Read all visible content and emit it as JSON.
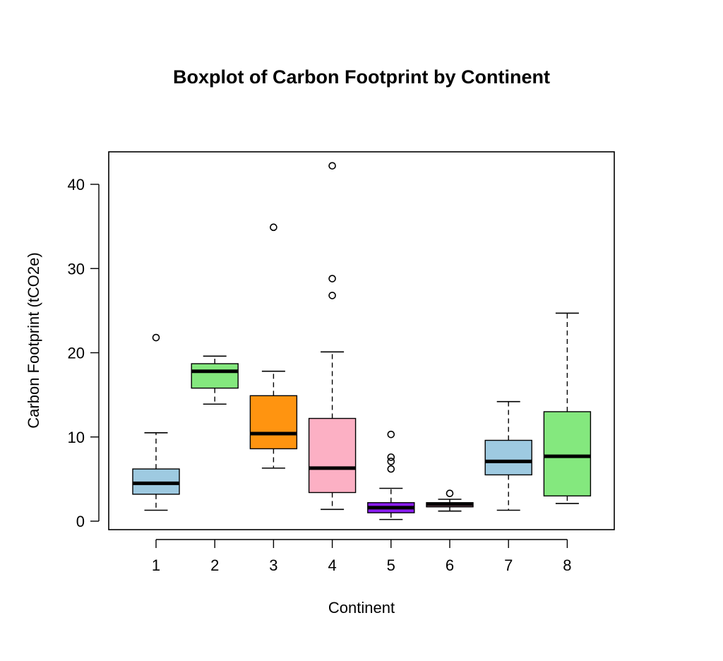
{
  "chart_data": {
    "type": "boxplot",
    "title": "Boxplot of Carbon Footprint by Continent",
    "xlabel": "Continent",
    "ylabel": "Carbon Footprint (tCO2e)",
    "ylim": [
      -1,
      44
    ],
    "y_ticks": [
      0,
      10,
      20,
      30,
      40
    ],
    "categories": [
      "1",
      "2",
      "3",
      "4",
      "5",
      "6",
      "7",
      "8"
    ],
    "grid": false,
    "legend": "none",
    "boxes": [
      {
        "category": "1",
        "color": "#9ecae1",
        "whisker_low": 1.3,
        "q1": 3.2,
        "median": 4.5,
        "q3": 6.2,
        "whisker_high": 10.5,
        "outliers": [
          21.8
        ]
      },
      {
        "category": "2",
        "color": "#84e87e",
        "whisker_low": 13.9,
        "q1": 15.8,
        "median": 17.8,
        "q3": 18.7,
        "whisker_high": 19.6,
        "outliers": []
      },
      {
        "category": "3",
        "color": "#ff9410",
        "whisker_low": 6.3,
        "q1": 8.6,
        "median": 10.4,
        "q3": 14.9,
        "whisker_high": 17.8,
        "outliers": [
          34.9
        ]
      },
      {
        "category": "4",
        "color": "#fcb0c4",
        "whisker_low": 1.4,
        "q1": 3.4,
        "median": 6.3,
        "q3": 12.2,
        "whisker_high": 20.1,
        "outliers": [
          26.8,
          28.8,
          42.2
        ]
      },
      {
        "category": "5",
        "color": "#8b1df2",
        "whisker_low": 0.2,
        "q1": 1.0,
        "median": 1.6,
        "q3": 2.2,
        "whisker_high": 3.9,
        "outliers": [
          6.2,
          7.1,
          7.6,
          10.3
        ]
      },
      {
        "category": "6",
        "color": "#ffa0bc",
        "whisker_low": 1.2,
        "q1": 1.7,
        "median": 2.0,
        "q3": 2.2,
        "whisker_high": 2.6,
        "outliers": [
          3.3
        ]
      },
      {
        "category": "7",
        "color": "#9ecae1",
        "whisker_low": 1.3,
        "q1": 5.5,
        "median": 7.1,
        "q3": 9.6,
        "whisker_high": 14.2,
        "outliers": []
      },
      {
        "category": "8",
        "color": "#84e87e",
        "whisker_low": 2.1,
        "q1": 3.0,
        "median": 7.7,
        "q3": 13.0,
        "whisker_high": 24.7,
        "outliers": []
      }
    ]
  }
}
